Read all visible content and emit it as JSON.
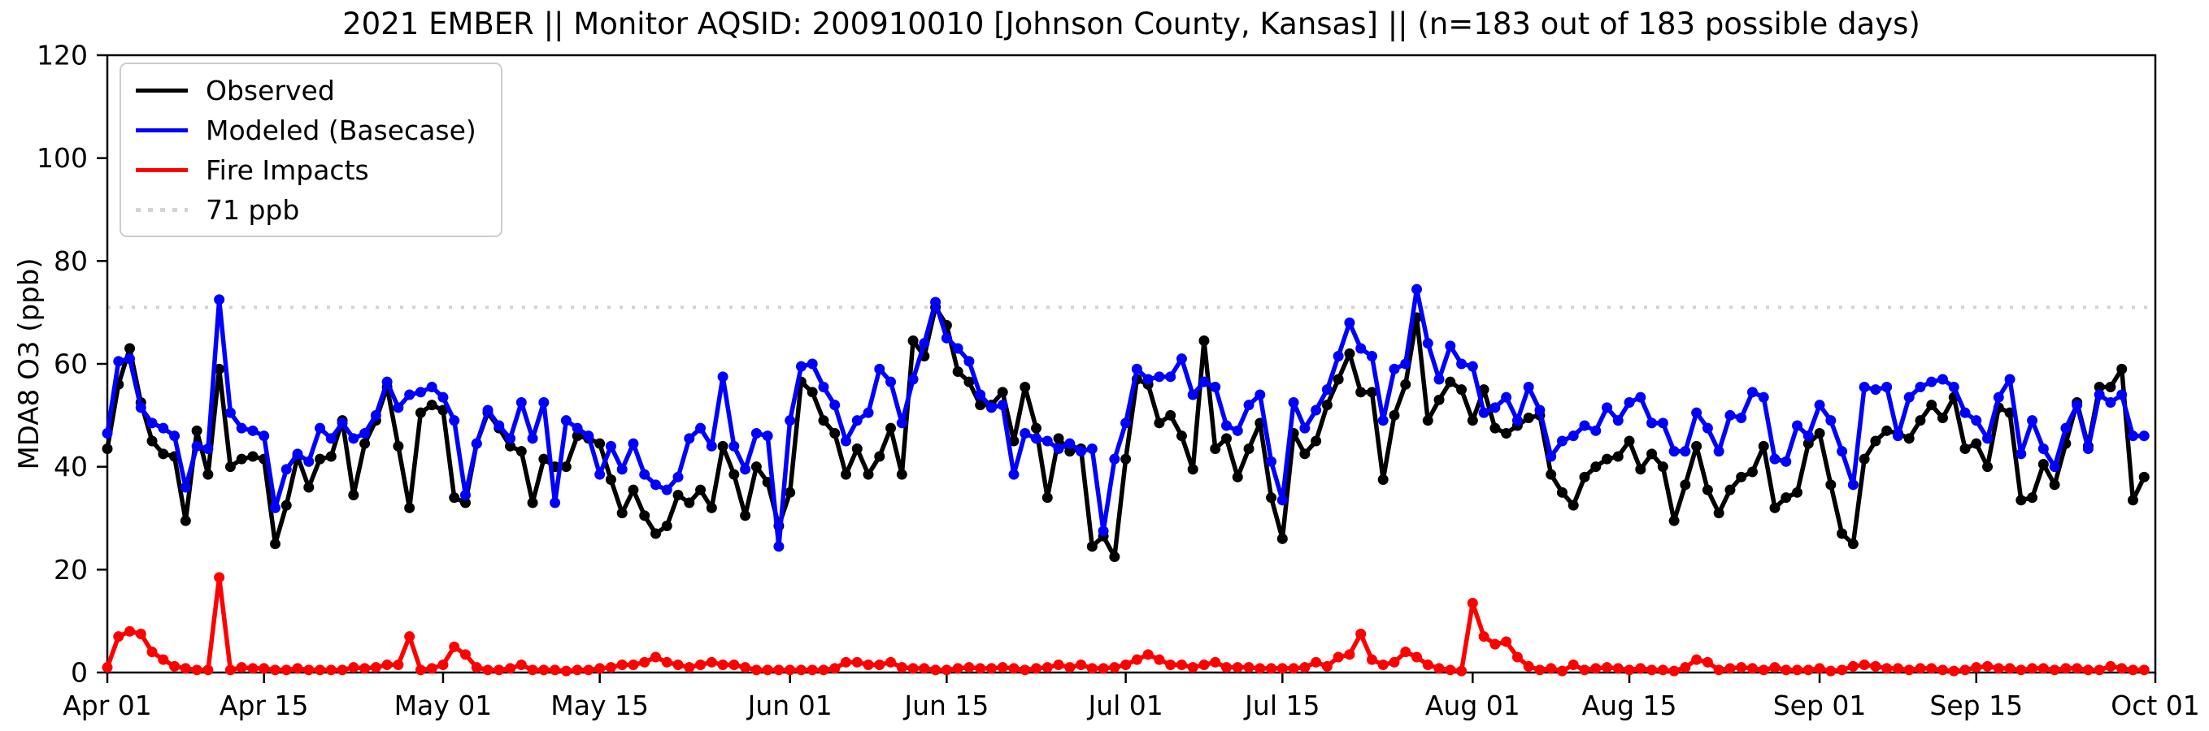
{
  "chart_data": {
    "type": "line",
    "title": "2021 EMBER || Monitor AQSID: 200910010 [Johnson County, Kansas] || (n=183 out of 183 possible days)",
    "ylabel": "MDA8 O3 (ppb)",
    "ylim": [
      0,
      120
    ],
    "yticks": [
      0,
      20,
      40,
      60,
      80,
      100,
      120
    ],
    "grid": false,
    "legend_position": "upper-left",
    "n_days": 183,
    "x_axis": {
      "tick_labels": [
        "Apr 01",
        "Apr 15",
        "May 01",
        "May 15",
        "Jun 01",
        "Jun 15",
        "Jul 01",
        "Jul 15",
        "Aug 01",
        "Aug 15",
        "Sep 01",
        "Sep 15",
        "Oct 01"
      ],
      "tick_day_index": [
        0,
        14,
        30,
        44,
        61,
        75,
        91,
        105,
        122,
        136,
        153,
        167,
        183
      ]
    },
    "threshold": {
      "value": 71,
      "label": "71 ppb",
      "color": "#d3d3d3"
    },
    "series": [
      {
        "name": "Observed",
        "color": "#000000",
        "values": [
          43.5,
          56,
          63,
          52.5,
          45,
          42.5,
          42,
          29.5,
          47,
          38.5,
          59,
          40,
          41.5,
          42,
          41.5,
          25,
          32.5,
          42,
          36,
          41.5,
          42,
          49,
          34.5,
          44.5,
          49,
          55.5,
          44,
          32,
          50.5,
          52,
          51,
          34,
          33,
          44.5,
          50.5,
          47.5,
          44,
          43,
          33,
          41.5,
          40,
          40,
          46,
          45.5,
          44.5,
          37.5,
          31,
          35.5,
          30.5,
          27,
          28.5,
          34.5,
          33,
          35.5,
          32,
          44,
          38.5,
          30.5,
          40,
          37,
          28.5,
          35,
          56.5,
          54.5,
          49,
          46.5,
          38.5,
          43.5,
          38.5,
          42,
          47.5,
          38.5,
          64.5,
          61.5,
          71,
          67.5,
          58.5,
          56.5,
          52,
          52,
          54.5,
          45,
          55.5,
          47.5,
          34,
          45.5,
          43,
          43.5,
          24.5,
          26.5,
          22.5,
          41.5,
          57,
          56,
          48.5,
          50,
          46,
          39.5,
          64.5,
          43.5,
          45.5,
          38,
          43.5,
          48.5,
          34,
          26,
          46.5,
          42.5,
          45,
          52,
          57,
          62,
          54.5,
          54.5,
          37.5,
          50,
          56,
          69,
          49,
          53,
          56.5,
          55,
          49,
          55,
          47.5,
          46.5,
          48,
          49.5,
          50,
          38.5,
          35,
          32.5,
          38,
          40,
          41.5,
          42,
          45,
          39.5,
          42.5,
          40,
          29.5,
          36.5,
          44,
          35.5,
          31,
          35.5,
          38,
          39,
          44,
          32,
          34,
          35,
          44.5,
          46.5,
          36.5,
          27,
          25,
          41.5,
          45,
          47,
          46.5,
          45.5,
          49,
          52,
          49.5,
          53.5,
          43.5,
          44.5,
          40,
          51.5,
          50.5,
          33.5,
          34,
          40.5,
          36.5,
          44.5,
          52.5,
          44,
          55.5,
          55.5,
          59,
          33.5,
          38
        ]
      },
      {
        "name": "Modeled (Basecase)",
        "color": "#0000ff",
        "values": [
          46.5,
          60.5,
          61,
          51.5,
          48.5,
          47.5,
          46,
          36,
          44,
          43.5,
          72.5,
          50.5,
          47.5,
          47,
          46,
          32,
          39.5,
          42.5,
          41,
          47.5,
          45.5,
          48.5,
          45.5,
          46.5,
          50,
          56.5,
          51.5,
          54,
          54.5,
          55.5,
          53.5,
          49,
          34.5,
          44.5,
          51,
          48,
          45.5,
          52.5,
          45.5,
          52.5,
          33,
          49,
          47.5,
          46,
          38.5,
          44,
          39.5,
          44.5,
          38.5,
          36.5,
          35.5,
          38,
          45.5,
          47.5,
          44,
          57.5,
          44,
          39.5,
          46.5,
          46,
          24.5,
          49,
          59.5,
          60,
          55.5,
          52,
          45,
          49,
          50.5,
          59,
          56.5,
          48.5,
          57,
          64,
          72,
          65,
          63,
          60.5,
          54,
          51.5,
          52,
          38.5,
          46.5,
          45.5,
          45,
          43.5,
          44.5,
          43,
          43.5,
          27.5,
          41.5,
          48.5,
          59,
          57,
          57.5,
          57.5,
          61,
          54,
          56.5,
          55.5,
          48,
          47,
          52,
          54,
          41,
          33.5,
          52.5,
          47.5,
          51,
          55,
          61.5,
          68,
          63,
          61.5,
          49,
          59,
          60,
          74.5,
          64,
          57,
          63.5,
          60,
          59.5,
          50.5,
          51.5,
          53.5,
          49,
          55.5,
          51,
          42,
          45,
          46,
          48,
          47,
          51.5,
          49,
          52.5,
          53.5,
          48.5,
          48.5,
          43,
          43,
          50.5,
          47.5,
          43,
          50,
          49.5,
          54.5,
          53.5,
          41.5,
          41,
          48,
          46,
          52,
          49,
          43,
          36.5,
          55.5,
          55,
          55.5,
          46,
          53.5,
          55.5,
          56.5,
          57,
          55.5,
          50.5,
          49,
          45.5,
          53.5,
          57,
          42.5,
          49,
          43.5,
          40,
          47.5,
          52,
          43.5,
          54,
          52.5,
          54,
          46,
          46
        ]
      },
      {
        "name": "Fire Impacts",
        "color": "#ff0000",
        "values": [
          1,
          7,
          8,
          7.5,
          4,
          2.5,
          1.2,
          0.8,
          0.5,
          0.5,
          18.5,
          0.5,
          1,
          0.8,
          0.8,
          0.5,
          0.5,
          0.8,
          0.5,
          0.5,
          0.5,
          0.5,
          1,
          0.8,
          1,
          1.5,
          1.5,
          7,
          0.5,
          0.8,
          1.5,
          5,
          3.5,
          1,
          0.5,
          0.5,
          0.8,
          1.5,
          0.5,
          0.5,
          0.5,
          0.3,
          0.5,
          0.5,
          0.8,
          1,
          1.5,
          1.5,
          2,
          3,
          2,
          1.5,
          1,
          1.5,
          2,
          1.5,
          1.5,
          1,
          0.5,
          0.5,
          0.5,
          0.5,
          0.5,
          0.5,
          0.5,
          0.8,
          2,
          2,
          1.5,
          1.5,
          2,
          1,
          0.8,
          0.8,
          0.5,
          0.5,
          0.8,
          1,
          0.8,
          0.8,
          1,
          0.8,
          0.5,
          0.8,
          1,
          1.5,
          1,
          1.5,
          0.8,
          0.8,
          1,
          1.5,
          2.5,
          3.5,
          2.5,
          1.5,
          1.5,
          1,
          1.5,
          2,
          1,
          1,
          1,
          0.8,
          0.8,
          0.8,
          0.8,
          1,
          2,
          1.2,
          3,
          3.5,
          7.5,
          2.5,
          1.5,
          2,
          4,
          3,
          1.5,
          0.8,
          0.5,
          0.3,
          13.5,
          7,
          5.5,
          6,
          3,
          1.2,
          0.5,
          0.8,
          0.3,
          1.5,
          0.5,
          0.8,
          1,
          0.8,
          0.5,
          0.8,
          0.5,
          0.5,
          0.3,
          1,
          2.5,
          2,
          0.5,
          0.8,
          1,
          0.8,
          0.5,
          1,
          0.5,
          0.5,
          0.5,
          0.8,
          0.3,
          0.5,
          1.2,
          1.5,
          1.2,
          0.8,
          0.8,
          0.5,
          0.8,
          0.8,
          0.5,
          0.3,
          0.5,
          1,
          1.2,
          0.8,
          0.8,
          0.5,
          0.8,
          0.8,
          0.5,
          0.8,
          0.8,
          0.5,
          0.5,
          1.2,
          0.8,
          0.5,
          0.5
        ]
      }
    ]
  }
}
